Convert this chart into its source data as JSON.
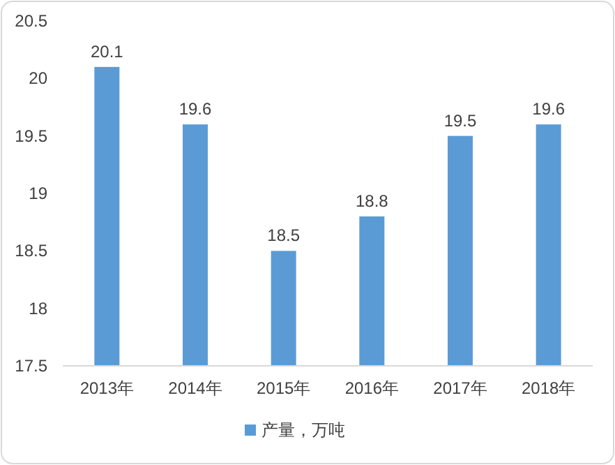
{
  "chart_data": {
    "type": "bar",
    "categories": [
      "2013年",
      "2014年",
      "2015年",
      "2016年",
      "2017年",
      "2018年"
    ],
    "series": [
      {
        "name": "产量，万吨",
        "color": "#5b9bd5",
        "values": [
          20.1,
          19.6,
          18.5,
          18.8,
          19.5,
          19.6
        ]
      }
    ],
    "ylim": [
      17.5,
      20.5
    ],
    "yticks": [
      17.5,
      18,
      18.5,
      19,
      19.5,
      20,
      20.5
    ],
    "data_labels": true,
    "legend": "bottom"
  }
}
